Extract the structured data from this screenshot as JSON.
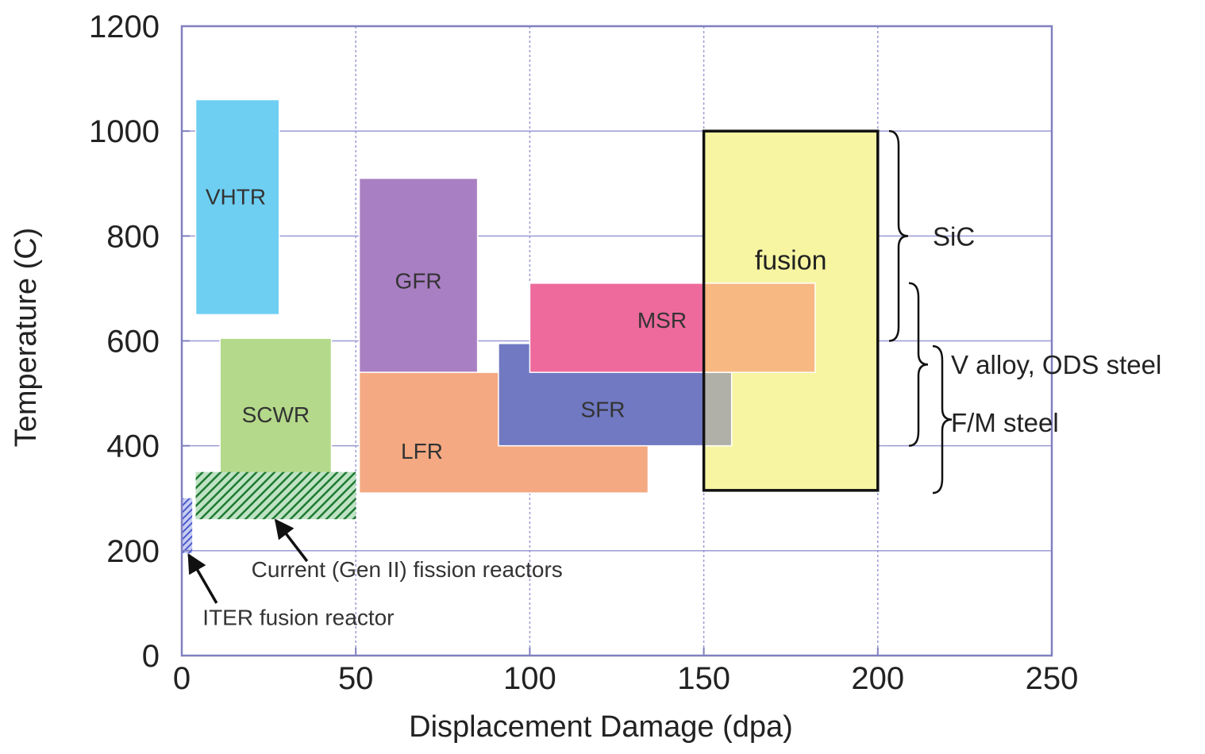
{
  "chart_data": {
    "type": "area",
    "xlabel": "Displacement Damage (dpa)",
    "ylabel": "Temperature (C)",
    "xlim": [
      0,
      250
    ],
    "ylim": [
      0,
      1200
    ],
    "xticks": [
      0,
      50,
      100,
      150,
      200,
      250
    ],
    "yticks": [
      0,
      200,
      400,
      600,
      800,
      1000,
      1200
    ],
    "grid": true,
    "regions": [
      {
        "id": "vhtr",
        "label": "VHTR",
        "x0": 4,
        "x1": 28,
        "y0": 650,
        "y1": 1060,
        "color": "#6ecff2"
      },
      {
        "id": "gfr",
        "label": "GFR",
        "x0": 51,
        "x1": 85,
        "y0": 540,
        "y1": 910,
        "color": "#a97fc3"
      },
      {
        "id": "lfr",
        "label": "LFR",
        "x0": 51,
        "x1": 134,
        "y0": 310,
        "y1": 540,
        "color": "#f4a982"
      },
      {
        "id": "sfr",
        "label": "SFR",
        "x0": 91,
        "x1": 150,
        "y0": 400,
        "y1": 595,
        "color": "#7079c2"
      },
      {
        "id": "sfr-overlap",
        "label": "",
        "x0": 150,
        "x1": 158,
        "y0": 400,
        "y1": 540,
        "color": "#b0b0a8"
      },
      {
        "id": "msr",
        "label": "MSR",
        "x0": 100,
        "x1": 150,
        "y0": 540,
        "y1": 710,
        "color": "#ee6a9c"
      },
      {
        "id": "msr-overlap",
        "label": "",
        "x0": 150,
        "x1": 182,
        "y0": 540,
        "y1": 710,
        "color": "#f7b882"
      },
      {
        "id": "scwr",
        "label": "SCWR",
        "x0": 11,
        "x1": 43,
        "y0": 315,
        "y1": 605,
        "color": "#b4d98a"
      }
    ],
    "hatched_regions": [
      {
        "id": "gen2",
        "x0": 4,
        "x1": 50,
        "y0": 260,
        "y1": 350,
        "color": "#2e8b3e"
      },
      {
        "id": "iter",
        "x0": 0,
        "x1": 3,
        "y0": 195,
        "y1": 300,
        "color": "#4a5bd0"
      }
    ],
    "fusion_box": {
      "label": "fusion",
      "x0": 150,
      "x1": 200,
      "y0": 315,
      "y1": 1000,
      "fill": "#f7f5a2",
      "stroke": "#111111"
    },
    "materials": [
      {
        "label": "SiC",
        "y0": 600,
        "y1": 1000
      },
      {
        "label": "V alloy, ODS steel",
        "y0": 400,
        "y1": 710
      },
      {
        "label": "F/M steel",
        "y0": 310,
        "y1": 590
      }
    ],
    "annotations": [
      {
        "text": "Current (Gen II) fission reactors",
        "arrow_to_x": 27,
        "arrow_to_y": 258
      },
      {
        "text": "ITER fusion reactor",
        "arrow_to_x": 2,
        "arrow_to_y": 192
      }
    ]
  }
}
